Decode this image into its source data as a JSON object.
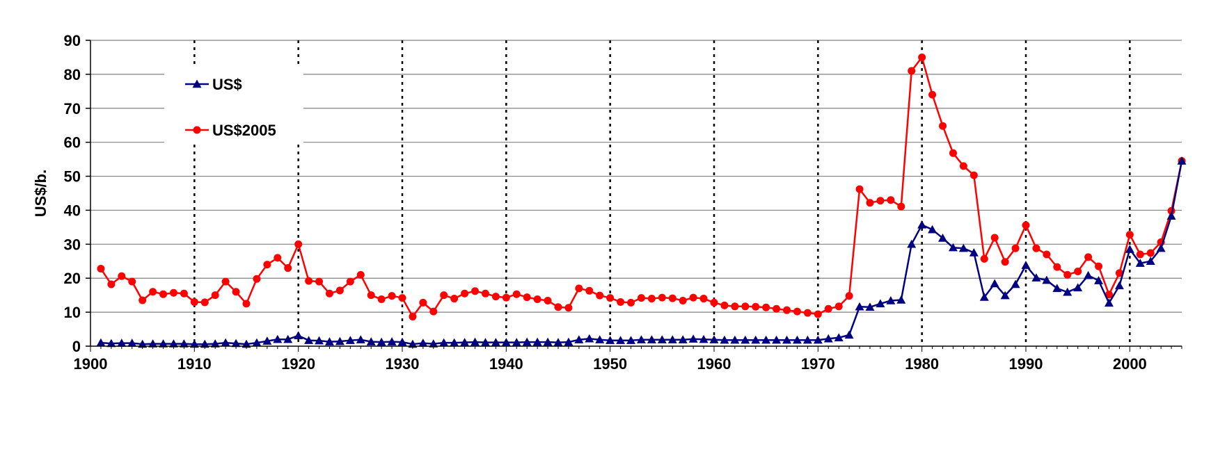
{
  "chart_data": {
    "type": "line",
    "title": "",
    "xlabel": "",
    "ylabel": "US$/b.",
    "xlim": [
      1900,
      2005
    ],
    "ylim": [
      0,
      90
    ],
    "x_ticks": [
      1900,
      1910,
      1920,
      1930,
      1940,
      1950,
      1960,
      1970,
      1980,
      1990,
      2000
    ],
    "y_ticks": [
      0,
      10,
      20,
      30,
      40,
      50,
      60,
      70,
      80,
      90
    ],
    "vertical_dashed_lines_at": [
      1910,
      1920,
      1930,
      1940,
      1950,
      1960,
      1970,
      1980,
      1990,
      2000
    ],
    "horizontal_grid": true,
    "legend_position": "top-left",
    "x": [
      1901,
      1902,
      1903,
      1904,
      1905,
      1906,
      1907,
      1908,
      1909,
      1910,
      1911,
      1912,
      1913,
      1914,
      1915,
      1916,
      1917,
      1918,
      1919,
      1920,
      1921,
      1922,
      1923,
      1924,
      1925,
      1926,
      1927,
      1928,
      1929,
      1930,
      1931,
      1932,
      1933,
      1934,
      1935,
      1936,
      1937,
      1938,
      1939,
      1940,
      1941,
      1942,
      1943,
      1944,
      1945,
      1946,
      1947,
      1948,
      1949,
      1950,
      1951,
      1952,
      1953,
      1954,
      1955,
      1956,
      1957,
      1958,
      1959,
      1960,
      1961,
      1962,
      1963,
      1964,
      1965,
      1966,
      1967,
      1968,
      1969,
      1970,
      1971,
      1972,
      1973,
      1974,
      1975,
      1976,
      1977,
      1978,
      1979,
      1980,
      1981,
      1982,
      1983,
      1984,
      1985,
      1986,
      1987,
      1988,
      1989,
      1990,
      1991,
      1992,
      1993,
      1994,
      1995,
      1996,
      1997,
      1998,
      1999,
      2000,
      2001,
      2002,
      2003,
      2004,
      2005
    ],
    "series": [
      {
        "name": "US$",
        "color": "#000080",
        "marker": "triangle",
        "values": [
          1.0,
          0.8,
          0.9,
          0.9,
          0.6,
          0.7,
          0.7,
          0.7,
          0.7,
          0.6,
          0.6,
          0.7,
          1.0,
          0.8,
          0.6,
          1.0,
          1.5,
          2.0,
          2.0,
          3.1,
          1.7,
          1.6,
          1.3,
          1.4,
          1.7,
          1.9,
          1.3,
          1.2,
          1.3,
          1.2,
          0.6,
          0.9,
          0.7,
          1.0,
          1.0,
          1.1,
          1.2,
          1.1,
          1.1,
          1.1,
          1.1,
          1.2,
          1.2,
          1.2,
          1.1,
          1.2,
          1.9,
          2.2,
          1.9,
          1.7,
          1.7,
          1.7,
          1.9,
          1.9,
          1.9,
          1.9,
          1.9,
          2.1,
          2.0,
          1.9,
          1.8,
          1.8,
          1.8,
          1.8,
          1.8,
          1.8,
          1.8,
          1.8,
          1.8,
          1.8,
          2.2,
          2.5,
          3.3,
          11.6,
          11.5,
          12.5,
          13.4,
          13.6,
          30.0,
          35.7,
          34.3,
          31.8,
          29.0,
          28.8,
          27.5,
          14.4,
          18.4,
          14.9,
          18.2,
          23.8,
          20.1,
          19.4,
          17.0,
          15.9,
          17.2,
          20.8,
          19.3,
          12.7,
          17.8,
          28.5,
          24.4,
          25.0,
          28.8,
          38.3,
          54.5
        ]
      },
      {
        "name": "US$2005",
        "color": "#ff0000",
        "marker": "circle",
        "values": [
          22.8,
          18.2,
          20.6,
          19.0,
          13.5,
          16.0,
          15.3,
          15.7,
          15.5,
          13.0,
          12.9,
          15.0,
          19.0,
          16.0,
          12.5,
          19.8,
          24.0,
          26.0,
          23.0,
          30.0,
          19.2,
          19.0,
          15.5,
          16.4,
          19.0,
          21.0,
          15.0,
          13.8,
          14.8,
          14.2,
          8.7,
          12.8,
          10.2,
          15.0,
          14.0,
          15.5,
          16.2,
          15.5,
          14.6,
          14.3,
          15.3,
          14.4,
          13.8,
          13.4,
          11.5,
          11.3,
          17.0,
          16.3,
          14.9,
          14.2,
          13.0,
          12.8,
          14.2,
          14.0,
          14.3,
          14.1,
          13.4,
          14.3,
          14.0,
          12.8,
          12.0,
          11.7,
          11.7,
          11.6,
          11.4,
          11.0,
          10.6,
          10.2,
          9.8,
          9.4,
          11.0,
          11.7,
          14.8,
          46.2,
          42.2,
          42.8,
          43.0,
          41.1,
          81.0,
          85.0,
          74.0,
          64.8,
          56.8,
          53.0,
          50.3,
          25.7,
          31.9,
          24.8,
          28.8,
          35.6,
          28.8,
          27.0,
          23.3,
          21.0,
          22.0,
          26.2,
          23.5,
          15.2,
          21.5,
          32.8,
          27.0,
          27.4,
          30.6,
          39.8,
          54.5
        ]
      }
    ]
  }
}
